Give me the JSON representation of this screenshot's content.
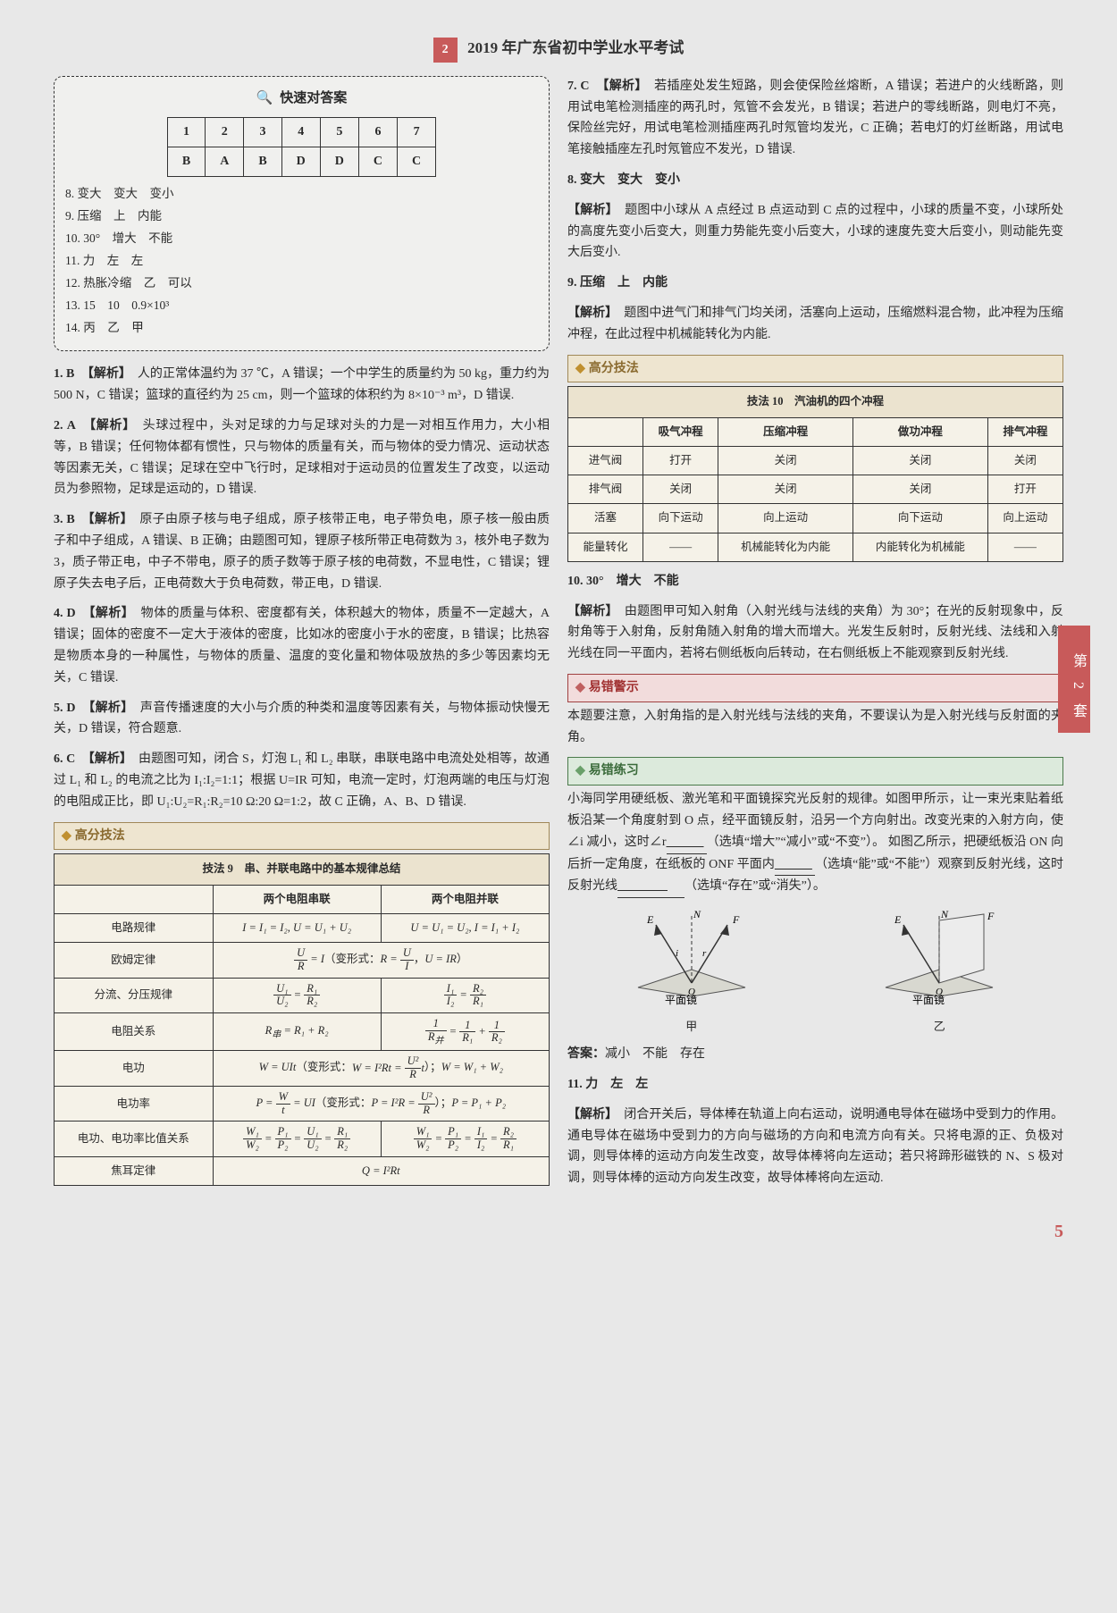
{
  "header": {
    "badge": "2",
    "title": "2019 年广东省初中学业水平考试"
  },
  "side_tab": "第 2 套",
  "page_number": "5",
  "answer_box": {
    "title": "快速对答案",
    "grid": {
      "head": [
        "1",
        "2",
        "3",
        "4",
        "5",
        "6",
        "7"
      ],
      "row": [
        "B",
        "A",
        "B",
        "D",
        "D",
        "C",
        "C"
      ]
    },
    "lines": [
      "8. 变大　变大　变小",
      "9. 压缩　上　内能",
      "10. 30°　增大　不能",
      "11. 力　左　左",
      "12. 热胀冷缩　乙　可以",
      "13. 15　10　0.9×10³",
      "14. 丙　乙　甲"
    ]
  },
  "left_items": [
    {
      "num": "1.",
      "ans": "B",
      "label": "【解析】",
      "text": "人的正常体温约为 37 ℃，A 错误；一个中学生的质量约为 50 kg，重力约为 500 N，C 错误；篮球的直径约为 25 cm，则一个篮球的体积约为 8×10⁻³ m³，D 错误."
    },
    {
      "num": "2.",
      "ans": "A",
      "label": "【解析】",
      "text": "头球过程中，头对足球的力与足球对头的力是一对相互作用力，大小相等，B 错误；任何物体都有惯性，只与物体的质量有关，而与物体的受力情况、运动状态等因素无关，C 错误；足球在空中飞行时，足球相对于运动员的位置发生了改变，以运动员为参照物，足球是运动的，D 错误."
    },
    {
      "num": "3.",
      "ans": "B",
      "label": "【解析】",
      "text": "原子由原子核与电子组成，原子核带正电，电子带负电，原子核一般由质子和中子组成，A 错误、B 正确；由题图可知，锂原子核所带正电荷数为 3，核外电子数为 3，质子带正电，中子不带电，原子的质子数等于原子核的电荷数，不显电性，C 错误；锂原子失去电子后，正电荷数大于负电荷数，带正电，D 错误."
    },
    {
      "num": "4.",
      "ans": "D",
      "label": "【解析】",
      "text": "物体的质量与体积、密度都有关，体积越大的物体，质量不一定越大，A 错误；固体的密度不一定大于液体的密度，比如冰的密度小于水的密度，B 错误；比热容是物质本身的一种属性，与物体的质量、温度的变化量和物体吸放热的多少等因素均无关，C 错误."
    },
    {
      "num": "5.",
      "ans": "D",
      "label": "【解析】",
      "text": "声音传播速度的大小与介质的种类和温度等因素有关，与物体振动快慢无关，D 错误，符合题意."
    },
    {
      "num": "6.",
      "ans": "C",
      "label": "【解析】",
      "text": "由题图可知，闭合 S，灯泡 L₁ 和 L₂ 串联，串联电路中电流处处相等，故通过 L₁ 和 L₂ 的电流之比为 I₁:I₂=1:1；根据 U=IR 可知，电流一定时，灯泡两端的电压与灯泡的电阻成正比，即 U₁:U₂=R₁:R₂=10 Ω:20 Ω=1:2，故 C 正确，A、B、D 错误."
    }
  ],
  "tech9": {
    "header": "高分技法",
    "caption": "技法 9　串、并联电路中的基本规律总结",
    "col_headers": [
      "两个电阻串联",
      "两个电阻并联"
    ],
    "rows": [
      {
        "label": "电路规律",
        "c1": "I = I₁ = I₂, U = U₁ + U₂",
        "c2": "U = U₁ = U₂, I = I₁ + I₂"
      },
      {
        "label": "欧姆定律",
        "span": "I = U/R（变形式：R = U/I，U = IR）"
      },
      {
        "label": "分流、分压规律",
        "c1_html": "frac:U1/U2=R1/R2",
        "c2_html": "frac:I1/I2=R2/R1"
      },
      {
        "label": "电阻关系",
        "c1": "R串 = R₁ + R₂",
        "c2_html": "frac:1/Rp=1/R1+1/R2"
      },
      {
        "label": "电功",
        "span": "W = UIt（变形式：W = I²Rt = U²t/R）；W = W₁ + W₂"
      },
      {
        "label": "电功率",
        "span": "P = W/t = UI（变形式：P = I²R = U²/R）；P = P₁ + P₂"
      },
      {
        "label": "电功、电功率比值关系",
        "c1_html": "frac:W1/W2=P1/P2=U1/U2=R1/R2",
        "c2_html": "frac:W1/W2=P1/P2=I1/I2=R2/R1"
      },
      {
        "label": "焦耳定律",
        "span": "Q = I²Rt"
      }
    ]
  },
  "right_items_top": [
    {
      "num": "7.",
      "ans": "C",
      "label": "【解析】",
      "text": "若插座处发生短路，则会使保险丝熔断，A 错误；若进户的火线断路，则用试电笔检测插座的两孔时，氖管不会发光，B 错误；若进户的零线断路，则电灯不亮，保险丝完好，用试电笔检测插座两孔时氖管均发光，C 正确；若电灯的灯丝断路，用试电笔接触插座左孔时氖管应不发光，D 错误."
    },
    {
      "num": "8.",
      "ans": "变大　变大　变小",
      "label": "",
      "text": ""
    },
    {
      "num": "",
      "ans": "",
      "label": "【解析】",
      "text": "题图中小球从 A 点经过 B 点运动到 C 点的过程中，小球的质量不变，小球所处的高度先变小后变大，则重力势能先变小后变大，小球的速度先变大后变小，则动能先变大后变小."
    },
    {
      "num": "9.",
      "ans": "压缩　上　内能",
      "label": "",
      "text": ""
    },
    {
      "num": "",
      "ans": "",
      "label": "【解析】",
      "text": "题图中进气门和排气门均关闭，活塞向上运动，压缩燃料混合物，此冲程为压缩冲程，在此过程中机械能转化为内能."
    }
  ],
  "tech10": {
    "header": "高分技法",
    "caption": "技法 10　汽油机的四个冲程",
    "col_headers": [
      "吸气冲程",
      "压缩冲程",
      "做功冲程",
      "排气冲程"
    ],
    "rows": [
      {
        "label": "进气阀",
        "cells": [
          "打开",
          "关闭",
          "关闭",
          "关闭"
        ]
      },
      {
        "label": "排气阀",
        "cells": [
          "关闭",
          "关闭",
          "关闭",
          "打开"
        ]
      },
      {
        "label": "活塞",
        "cells": [
          "向下运动",
          "向上运动",
          "向下运动",
          "向上运动"
        ]
      },
      {
        "label": "能量转化",
        "cells": [
          "——",
          "机械能转化为内能",
          "内能转化为机械能",
          "——"
        ]
      }
    ]
  },
  "right_items_mid": [
    {
      "num": "10.",
      "ans": "30°　增大　不能",
      "label": "",
      "text": ""
    },
    {
      "num": "",
      "ans": "",
      "label": "【解析】",
      "text": "由题图甲可知入射角（入射光线与法线的夹角）为 30°；在光的反射现象中，反射角等于入射角，反射角随入射角的增大而增大。光发生反射时，反射光线、法线和入射光线在同一平面内，若将右侧纸板向后转动，在右侧纸板上不能观察到反射光线."
    }
  ],
  "warn": {
    "header": "易错警示",
    "text": "本题要注意，入射角指的是入射光线与法线的夹角，不要误认为是入射光线与反射面的夹角。"
  },
  "practice": {
    "header": "易错练习",
    "text_a": "小海同学用硬纸板、激光笔和平面镜探究光反射的规律。如图甲所示，让一束光束贴着纸板沿某一个角度射到 O 点，经平面镜反射，沿另一个方向射出。改变光束的入射方向，使∠i 减小，这时∠r",
    "blank1_hint": "（选填“增大”“减小”或“不变”）。",
    "text_b": "如图乙所示，把硬纸板沿 ON 向后折一定角度，在纸板的 ONF 平面内",
    "blank2_hint": "（选填“能”或“不能”）观察到反射光线，这时反射光线",
    "blank3_hint": "（选填“存在”或“消失”）。",
    "diag_labels": {
      "left": "甲",
      "right": "乙",
      "mirror": "平面镜"
    },
    "answer_label": "答案：",
    "answer": "减小　不能　存在"
  },
  "right_items_bottom": [
    {
      "num": "11.",
      "ans": "力　左　左",
      "label": "",
      "text": ""
    },
    {
      "num": "",
      "ans": "",
      "label": "【解析】",
      "text": "闭合开关后，导体棒在轨道上向右运动，说明通电导体在磁场中受到力的作用。通电导体在磁场中受到力的方向与磁场的方向和电流方向有关。只将电源的正、负极对调，则导体棒的运动方向发生改变，故导体棒将向左运动；若只将蹄形磁铁的 N、S 极对调，则导体棒的运动方向发生改变，故导体棒将向左运动."
    }
  ]
}
